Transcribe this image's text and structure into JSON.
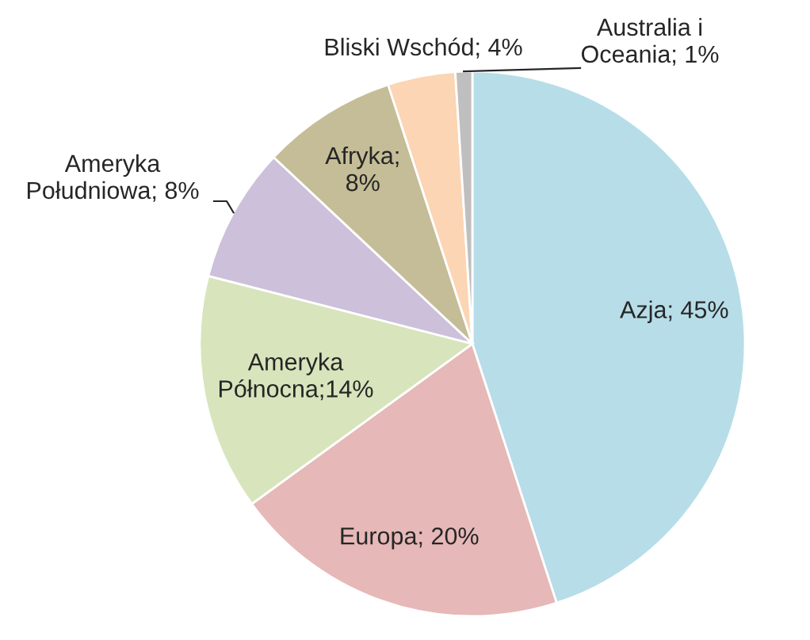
{
  "chart_data": {
    "type": "pie",
    "categories": [
      "Azja",
      "Europa",
      "Ameryka Północna",
      "Ameryka Południowa",
      "Afryka",
      "Bliski Wschód",
      "Australia i Oceania"
    ],
    "values": [
      45,
      20,
      14,
      8,
      8,
      4,
      1
    ],
    "colors": [
      "#b7dde8",
      "#e6b8b7",
      "#d8e4bc",
      "#ccc0da",
      "#c4bd97",
      "#fcd5b4",
      "#bfbfbf"
    ],
    "value_labels": [
      "; 45%",
      "; 20%",
      ";14%",
      "; 8%",
      "; 8%",
      "; 4%",
      "; 1%"
    ]
  }
}
